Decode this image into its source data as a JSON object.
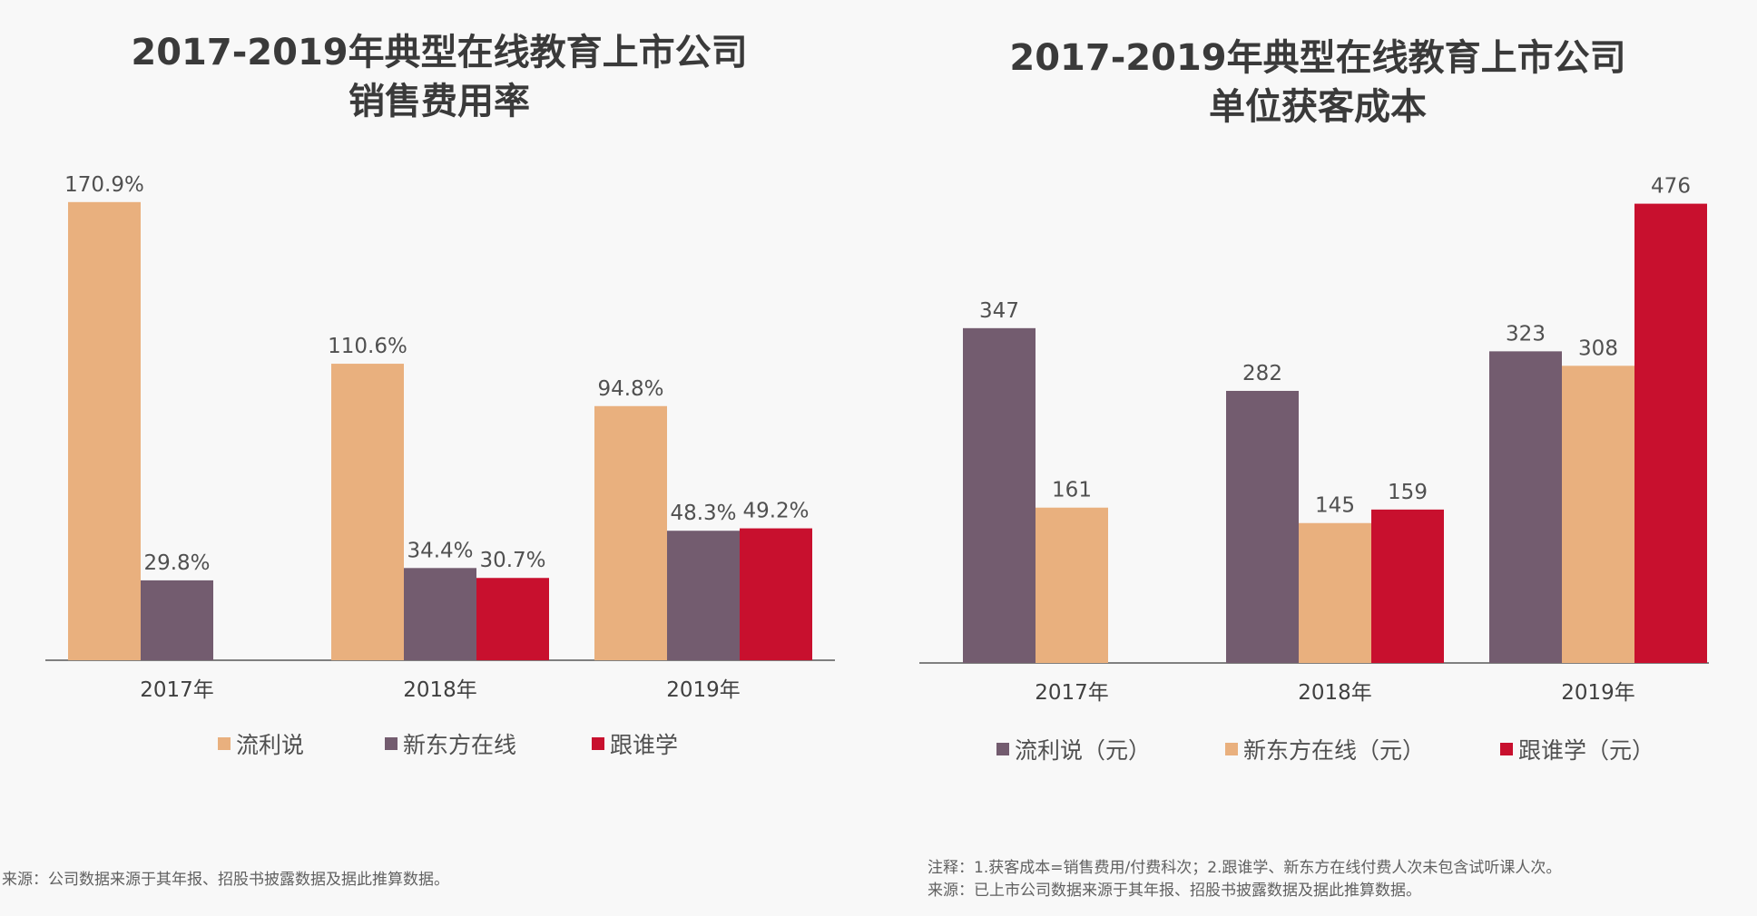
{
  "colors": {
    "liulishuo": "#e9b07e",
    "xdf": "#735c6f",
    "genshuixue": "#c8102e"
  },
  "charts": [
    {
      "title_line1": "2017-2019年典型在线教育上市公司",
      "title_line2": "销售费用率",
      "legend": [
        "流利说",
        "新东方在线",
        "跟谁学"
      ],
      "source": "来源：公司数据来源于其年报、招股书披露数据及据此推算数据。"
    },
    {
      "title_line1": "2017-2019年典型在线教育上市公司",
      "title_line2": "单位获客成本",
      "legend": [
        "流利说（元）",
        "新东方在线（元）",
        "跟谁学（元）"
      ],
      "note": "注释：1.获客成本=销售费用/付费科次；2.跟谁学、新东方在线付费人次未包含试听课人次。",
      "source": "来源：已上市公司数据来源于其年报、招股书披露数据及据此推算数据。"
    }
  ],
  "chart_data": [
    {
      "type": "bar",
      "title": "2017-2019年典型在线教育上市公司销售费用率",
      "categories": [
        "2017年",
        "2018年",
        "2019年"
      ],
      "series": [
        {
          "name": "流利说",
          "color": "#e9b07e",
          "values": [
            170.9,
            110.6,
            94.8
          ],
          "labels": [
            "170.9%",
            "110.6%",
            "94.8%"
          ]
        },
        {
          "name": "新东方在线",
          "color": "#735c6f",
          "values": [
            29.8,
            34.4,
            48.3
          ],
          "labels": [
            "29.8%",
            "34.4%",
            "48.3%"
          ]
        },
        {
          "name": "跟谁学",
          "color": "#c8102e",
          "values": [
            null,
            30.7,
            49.2
          ],
          "labels": [
            "",
            "30.7%",
            "49.2%"
          ]
        }
      ],
      "ylim": [
        0,
        182
      ]
    },
    {
      "type": "bar",
      "title": "2017-2019年典型在线教育上市公司单位获客成本",
      "categories": [
        "2017年",
        "2018年",
        "2019年"
      ],
      "series": [
        {
          "name": "流利说（元）",
          "color": "#735c6f",
          "values": [
            347,
            282,
            323
          ],
          "labels": [
            "347",
            "282",
            "323"
          ]
        },
        {
          "name": "新东方在线（元）",
          "color": "#e9b07e",
          "values": [
            161,
            145,
            308
          ],
          "labels": [
            "161",
            "145",
            "308"
          ]
        },
        {
          "name": "跟谁学（元）",
          "color": "#c8102e",
          "values": [
            null,
            159,
            476
          ],
          "labels": [
            "",
            "159",
            "476"
          ]
        }
      ],
      "ylim": [
        0,
        501
      ]
    }
  ]
}
